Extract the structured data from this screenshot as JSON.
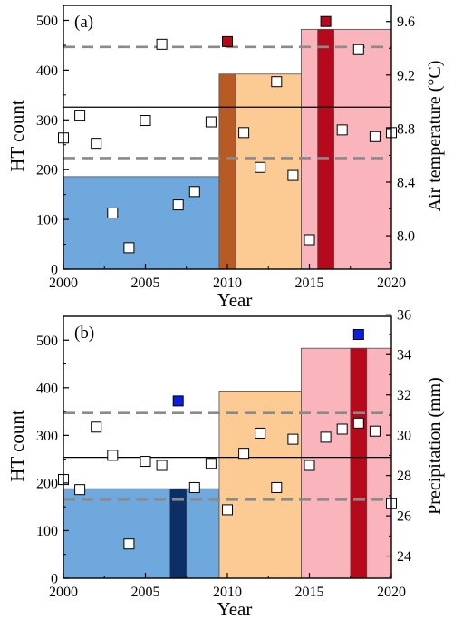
{
  "chart_data": [
    {
      "type": "bar",
      "panel_label": "(a)",
      "xlabel": "Year",
      "ylabel": "HT count",
      "y2label": "Air temperature (°C)",
      "xlim": [
        2000,
        2020
      ],
      "ylim": [
        0,
        530
      ],
      "y2lim": [
        7.75,
        9.72
      ],
      "xticks": [
        2000,
        2005,
        2010,
        2015,
        2020
      ],
      "yticks": [
        0,
        100,
        200,
        300,
        400,
        500
      ],
      "y2ticks": [
        8.0,
        8.4,
        8.8,
        9.2,
        9.6
      ],
      "y2tick_labels": [
        "8.0",
        "8.4",
        "8.8",
        "9.2",
        "9.6"
      ],
      "period_bars": [
        {
          "x_start": 2000,
          "x_end": 2009.5,
          "value": 186,
          "color": "#6fa8dc"
        },
        {
          "x_start": 2009.5,
          "x_end": 2014.5,
          "value": 392,
          "color": "#fccb94"
        },
        {
          "x_start": 2014.5,
          "x_end": 2020,
          "value": 482,
          "color": "#f9b4bc"
        }
      ],
      "highlight_bars": [
        {
          "x": 2010,
          "value": 392,
          "color": "#b85a24"
        },
        {
          "x": 2016,
          "value": 482,
          "color": "#b60a1c"
        }
      ],
      "highlight_markers": [
        {
          "x": 2010,
          "y2": 9.45,
          "color": "#b60a1c"
        },
        {
          "x": 2016,
          "y2": 9.6,
          "color": "#b60a1c"
        }
      ],
      "reference_lines": [
        {
          "y2": 8.96,
          "style": "solid",
          "color": "#000000"
        },
        {
          "y2": 9.41,
          "style": "dashed",
          "color": "#8a8a8a"
        },
        {
          "y2": 8.58,
          "style": "dashed",
          "color": "#8a8a8a"
        }
      ],
      "series": [
        {
          "axis": "y2",
          "marker": "open-square",
          "x": [
            2000,
            2001,
            2002,
            2003,
            2004,
            2005,
            2006,
            2007,
            2008,
            2009,
            2011,
            2012,
            2013,
            2014,
            2015,
            2017,
            2018,
            2019,
            2020
          ],
          "values": [
            8.73,
            8.9,
            8.69,
            8.17,
            7.91,
            8.86,
            9.43,
            8.23,
            8.33,
            8.85,
            8.77,
            8.51,
            9.15,
            8.45,
            7.97,
            8.79,
            9.39,
            8.74,
            8.77
          ]
        }
      ]
    },
    {
      "type": "bar",
      "panel_label": "(b)",
      "xlabel": "Year",
      "ylabel": "HT count",
      "y2label": "Precipitation (mm)",
      "xlim": [
        2000,
        2020
      ],
      "ylim": [
        0,
        550
      ],
      "y2lim": [
        22.9,
        35.9
      ],
      "xticks": [
        2000,
        2005,
        2010,
        2015,
        2020
      ],
      "yticks": [
        0,
        100,
        200,
        300,
        400,
        500
      ],
      "y2ticks": [
        24,
        26,
        28,
        30,
        32,
        34,
        36
      ],
      "y2tick_labels": [
        "24",
        "26",
        "28",
        "30",
        "32",
        "34",
        "36"
      ],
      "period_bars": [
        {
          "x_start": 2000,
          "x_end": 2009.5,
          "value": 188,
          "color": "#6fa8dc"
        },
        {
          "x_start": 2009.5,
          "x_end": 2014.5,
          "value": 393,
          "color": "#fccb94"
        },
        {
          "x_start": 2014.5,
          "x_end": 2020,
          "value": 483,
          "color": "#f9b4bc"
        }
      ],
      "highlight_bars": [
        {
          "x": 2007,
          "value": 188,
          "color": "#0b2f66"
        },
        {
          "x": 2018,
          "value": 483,
          "color": "#b60a1c"
        }
      ],
      "highlight_markers": [
        {
          "x": 2007,
          "y2": 31.7,
          "color": "#0a1ee6"
        },
        {
          "x": 2018,
          "y2": 35.0,
          "color": "#0a1ee6"
        }
      ],
      "reference_lines": [
        {
          "y2": 28.9,
          "style": "solid",
          "color": "#000000"
        },
        {
          "y2": 31.1,
          "style": "dashed",
          "color": "#8a8a8a"
        },
        {
          "y2": 26.8,
          "style": "dashed",
          "color": "#8a8a8a"
        }
      ],
      "series": [
        {
          "axis": "y2",
          "marker": "open-square",
          "x": [
            2000,
            2001,
            2002,
            2003,
            2004,
            2005,
            2006,
            2008,
            2009,
            2010,
            2011,
            2012,
            2013,
            2014,
            2015,
            2016,
            2017,
            2018,
            2019,
            2020
          ],
          "values": [
            27.8,
            27.3,
            30.4,
            29.0,
            24.6,
            28.7,
            28.5,
            27.4,
            28.6,
            26.3,
            29.1,
            30.1,
            27.4,
            29.8,
            28.5,
            29.9,
            30.3,
            30.6,
            30.2,
            26.6
          ]
        }
      ]
    }
  ]
}
